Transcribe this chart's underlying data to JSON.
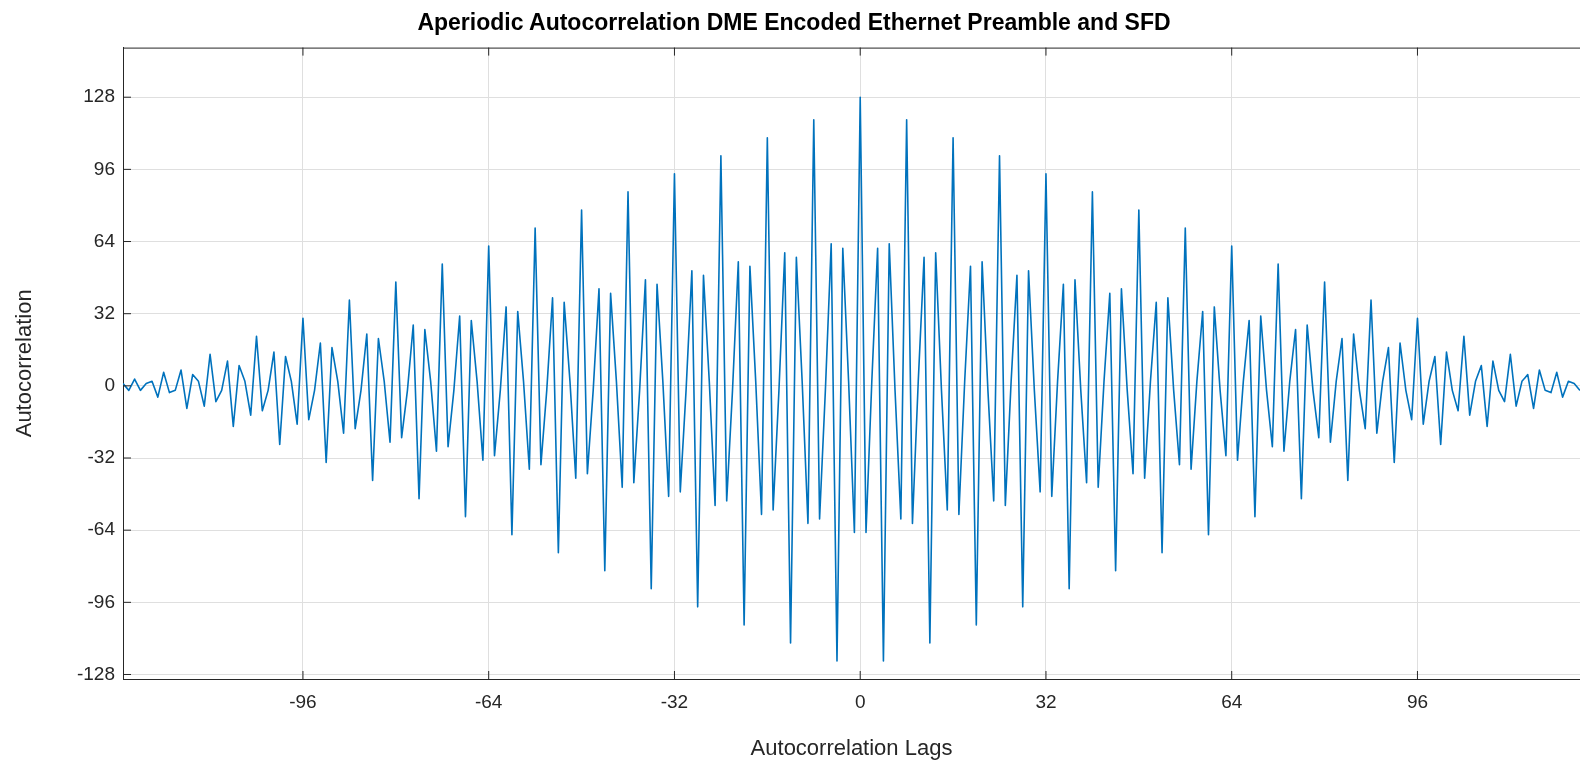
{
  "chart_data": {
    "type": "line",
    "title": "Aperiodic Autocorrelation DME Encoded Ethernet Preamble and SFD",
    "xlabel": "Autocorrelation Lags",
    "ylabel": "Autocorrelation",
    "color": "#0072bd",
    "marker": "none",
    "line_style": "solid",
    "legend": false,
    "grid": true,
    "xlim": [
      -127,
      124
    ],
    "ylim": [
      -130,
      150
    ],
    "xticks": [
      -96,
      -64,
      -32,
      0,
      32,
      64,
      96
    ],
    "yticks": [
      -128,
      -96,
      -64,
      -32,
      0,
      32,
      64,
      96,
      128
    ],
    "x": [
      -127,
      -126,
      -125,
      -124,
      -123,
      -122,
      -121,
      -120,
      -119,
      -118,
      -117,
      -116,
      -115,
      -114,
      -113,
      -112,
      -111,
      -110,
      -109,
      -108,
      -107,
      -106,
      -105,
      -104,
      -103,
      -102,
      -101,
      -100,
      -99,
      -98,
      -97,
      -96,
      -95,
      -94,
      -93,
      -92,
      -91,
      -90,
      -89,
      -88,
      -87,
      -86,
      -85,
      -84,
      -83,
      -82,
      -81,
      -80,
      -79,
      -78,
      -77,
      -76,
      -75,
      -74,
      -73,
      -72,
      -71,
      -70,
      -69,
      -68,
      -67,
      -66,
      -65,
      -64,
      -63,
      -62,
      -61,
      -60,
      -59,
      -58,
      -57,
      -56,
      -55,
      -54,
      -53,
      -52,
      -51,
      -50,
      -49,
      -48,
      -47,
      -46,
      -45,
      -44,
      -43,
      -42,
      -41,
      -40,
      -39,
      -38,
      -37,
      -36,
      -35,
      -34,
      -33,
      -32,
      -31,
      -30,
      -29,
      -28,
      -27,
      -26,
      -25,
      -24,
      -23,
      -22,
      -21,
      -20,
      -19,
      -18,
      -17,
      -16,
      -15,
      -14,
      -13,
      -12,
      -11,
      -10,
      -9,
      -8,
      -7,
      -6,
      -5,
      -4,
      -3,
      -2,
      -1,
      0,
      1,
      2,
      3,
      4,
      5,
      6,
      7,
      8,
      9,
      10,
      11,
      12,
      13,
      14,
      15,
      16,
      17,
      18,
      19,
      20,
      21,
      22,
      23,
      24,
      25,
      26,
      27,
      28,
      29,
      30,
      31,
      32,
      33,
      34,
      35,
      36,
      37,
      38,
      39,
      40,
      41,
      42,
      43,
      44,
      45,
      46,
      47,
      48,
      49,
      50,
      51,
      52,
      53,
      54,
      55,
      56,
      57,
      58,
      59,
      60,
      61,
      62,
      63,
      64,
      65,
      66,
      67,
      68,
      69,
      70,
      71,
      72,
      73,
      74,
      75,
      76,
      77,
      78,
      79,
      80,
      81,
      82,
      83,
      84,
      85,
      86,
      87,
      88,
      89,
      90,
      91,
      92,
      93,
      94,
      95,
      96,
      97,
      98,
      99,
      100,
      101,
      102,
      103,
      104,
      105,
      106,
      107,
      108,
      109,
      110,
      111,
      112,
      113,
      114,
      115,
      116,
      117,
      118,
      119,
      120,
      121,
      122,
      123,
      124
    ],
    "values": [
      1,
      -2,
      3,
      -2,
      1,
      2,
      -5,
      6,
      -3,
      -2,
      7,
      -10,
      5,
      2,
      -9,
      14,
      -7,
      -2,
      11,
      -18,
      9,
      2,
      -13,
      22,
      -11,
      -2,
      15,
      -26,
      13,
      2,
      -17,
      30,
      -15,
      -2,
      19,
      -34,
      17,
      2,
      -21,
      38,
      -19,
      -2,
      23,
      -42,
      21,
      2,
      -25,
      46,
      -23,
      -2,
      27,
      -50,
      25,
      2,
      -29,
      54,
      -27,
      -2,
      31,
      -58,
      29,
      2,
      -33,
      62,
      -31,
      -2,
      35,
      -66,
      33,
      2,
      -37,
      70,
      -35,
      -2,
      39,
      -74,
      37,
      2,
      -41,
      78,
      -39,
      -2,
      43,
      -82,
      41,
      2,
      -45,
      86,
      -43,
      -2,
      47,
      -90,
      45,
      2,
      -49,
      94,
      -47,
      -2,
      51,
      -98,
      49,
      2,
      -53,
      102,
      -51,
      -2,
      55,
      -106,
      53,
      2,
      -57,
      110,
      -55,
      -2,
      59,
      -114,
      57,
      2,
      -61,
      118,
      -59,
      -2,
      63,
      -122,
      61,
      2,
      -65,
      128,
      -65,
      2,
      61,
      -122,
      63,
      -2,
      -59,
      118,
      -61,
      2,
      57,
      -114,
      59,
      -2,
      -55,
      110,
      -57,
      2,
      53,
      -106,
      55,
      -2,
      -51,
      102,
      -53,
      2,
      49,
      -98,
      51,
      -2,
      -47,
      94,
      -49,
      2,
      45,
      -90,
      47,
      -2,
      -43,
      86,
      -45,
      2,
      41,
      -82,
      43,
      -2,
      -39,
      78,
      -41,
      2,
      37,
      -74,
      39,
      -2,
      -35,
      70,
      -37,
      2,
      33,
      -66,
      35,
      -2,
      -31,
      62,
      -33,
      2,
      29,
      -58,
      31,
      -2,
      -27,
      54,
      -29,
      2,
      25,
      -50,
      27,
      -2,
      -23,
      46,
      -25,
      2,
      21,
      -42,
      23,
      -2,
      -19,
      38,
      -21,
      2,
      17,
      -34,
      19,
      -2,
      -15,
      30,
      -17,
      2,
      13,
      -26,
      15,
      -2,
      -11,
      22,
      -13,
      2,
      9,
      -18,
      11,
      -2,
      -7,
      14,
      -9,
      2,
      5,
      -10,
      7,
      -2,
      -3,
      6,
      -5,
      2,
      1,
      -2
    ]
  }
}
